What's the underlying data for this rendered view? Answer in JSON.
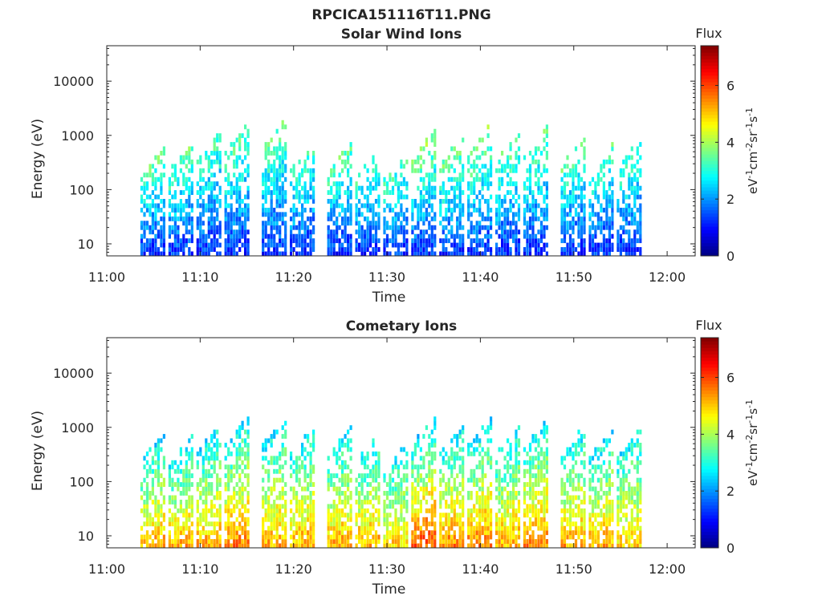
{
  "figure": {
    "title": "RPCICA151116T11.PNG"
  },
  "chart_data": [
    {
      "type": "heatmap",
      "title": "Solar Wind Ions",
      "xlabel": "Time",
      "ylabel": "Energy (eV)",
      "yscale": "log",
      "ylim": [
        6,
        45000
      ],
      "xlim": [
        "11:00",
        "12:03"
      ],
      "x_ticks": [
        "11:00",
        "11:10",
        "11:20",
        "11:30",
        "11:40",
        "11:50",
        "12:00"
      ],
      "y_ticks": [
        "10",
        "100",
        "1000",
        "10000"
      ],
      "colorbar": {
        "label": "Flux",
        "unit_label": "eV-1cm-2sr-1s-1",
        "ticks": [
          "0",
          "2",
          "4",
          "6"
        ],
        "range": [
          0,
          7.4
        ],
        "colormap": "jet"
      },
      "bursts": [
        {
          "time": "11:04",
          "peak_energy": 700,
          "low_flux": 1.2,
          "high_flux": 3.5
        },
        {
          "time": "11:07",
          "peak_energy": 800,
          "low_flux": 1.2,
          "high_flux": 3.5
        },
        {
          "time": "11:10",
          "peak_energy": 1400,
          "low_flux": 1.2,
          "high_flux": 3.3
        },
        {
          "time": "11:13",
          "peak_energy": 2000,
          "low_flux": 1.2,
          "high_flux": 3.5
        },
        {
          "time": "11:17",
          "peak_energy": 2500,
          "low_flux": 1.2,
          "high_flux": 3.5
        },
        {
          "time": "11:20",
          "peak_energy": 800,
          "low_flux": 1.2,
          "high_flux": 3.3
        },
        {
          "time": "11:24",
          "peak_energy": 900,
          "low_flux": 1.2,
          "high_flux": 3.5
        },
        {
          "time": "11:27",
          "peak_energy": 600,
          "low_flux": 1.2,
          "high_flux": 3.3
        },
        {
          "time": "11:30",
          "peak_energy": 500,
          "low_flux": 1.2,
          "high_flux": 3.3
        },
        {
          "time": "11:33",
          "peak_energy": 1500,
          "low_flux": 1.2,
          "high_flux": 3.8
        },
        {
          "time": "11:36",
          "peak_energy": 1200,
          "low_flux": 1.2,
          "high_flux": 3.8
        },
        {
          "time": "11:39",
          "peak_energy": 2000,
          "low_flux": 1.2,
          "high_flux": 3.8
        },
        {
          "time": "11:42",
          "peak_energy": 1300,
          "low_flux": 1.2,
          "high_flux": 3.5
        },
        {
          "time": "11:45",
          "peak_energy": 1800,
          "low_flux": 1.2,
          "high_flux": 3.5
        },
        {
          "time": "11:49",
          "peak_energy": 1100,
          "low_flux": 1.2,
          "high_flux": 3.5
        },
        {
          "time": "11:52",
          "peak_energy": 800,
          "low_flux": 1.2,
          "high_flux": 3.3
        },
        {
          "time": "11:55",
          "peak_energy": 1000,
          "low_flux": 1.2,
          "high_flux": 3.3
        }
      ]
    },
    {
      "type": "heatmap",
      "title": "Cometary Ions",
      "xlabel": "Time",
      "ylabel": "Energy (eV)",
      "yscale": "log",
      "ylim": [
        6,
        45000
      ],
      "xlim": [
        "11:00",
        "12:03"
      ],
      "x_ticks": [
        "11:00",
        "11:10",
        "11:20",
        "11:30",
        "11:40",
        "11:50",
        "12:00"
      ],
      "y_ticks": [
        "10",
        "100",
        "1000",
        "10000"
      ],
      "colorbar": {
        "label": "Flux",
        "unit_label": "eV-1cm-2sr-1s-1",
        "ticks": [
          "0",
          "2",
          "4",
          "6"
        ],
        "range": [
          0,
          7.4
        ],
        "colormap": "jet"
      },
      "bursts": [
        {
          "time": "11:04",
          "peak_energy": 900,
          "low_flux": 5.3,
          "high_flux": 2.6
        },
        {
          "time": "11:07",
          "peak_energy": 800,
          "low_flux": 5.3,
          "high_flux": 2.6
        },
        {
          "time": "11:10",
          "peak_energy": 1400,
          "low_flux": 5.3,
          "high_flux": 2.6
        },
        {
          "time": "11:13",
          "peak_energy": 2200,
          "low_flux": 5.6,
          "high_flux": 2.6
        },
        {
          "time": "11:17",
          "peak_energy": 2000,
          "low_flux": 5.3,
          "high_flux": 2.6
        },
        {
          "time": "11:20",
          "peak_energy": 1300,
          "low_flux": 5.3,
          "high_flux": 2.6
        },
        {
          "time": "11:24",
          "peak_energy": 1300,
          "low_flux": 5.3,
          "high_flux": 2.6
        },
        {
          "time": "11:27",
          "peak_energy": 900,
          "low_flux": 5.3,
          "high_flux": 2.6
        },
        {
          "time": "11:30",
          "peak_energy": 600,
          "low_flux": 5.0,
          "high_flux": 2.6
        },
        {
          "time": "11:33",
          "peak_energy": 2000,
          "low_flux": 6.0,
          "high_flux": 2.6
        },
        {
          "time": "11:36",
          "peak_energy": 1500,
          "low_flux": 5.6,
          "high_flux": 2.6
        },
        {
          "time": "11:39",
          "peak_energy": 2000,
          "low_flux": 5.6,
          "high_flux": 2.6
        },
        {
          "time": "11:42",
          "peak_energy": 1300,
          "low_flux": 5.3,
          "high_flux": 2.6
        },
        {
          "time": "11:45",
          "peak_energy": 2000,
          "low_flux": 5.6,
          "high_flux": 2.6
        },
        {
          "time": "11:49",
          "peak_energy": 1300,
          "low_flux": 5.3,
          "high_flux": 2.6
        },
        {
          "time": "11:52",
          "peak_energy": 1100,
          "low_flux": 5.3,
          "high_flux": 2.6
        },
        {
          "time": "11:55",
          "peak_energy": 1300,
          "low_flux": 5.0,
          "high_flux": 2.6
        }
      ]
    }
  ]
}
